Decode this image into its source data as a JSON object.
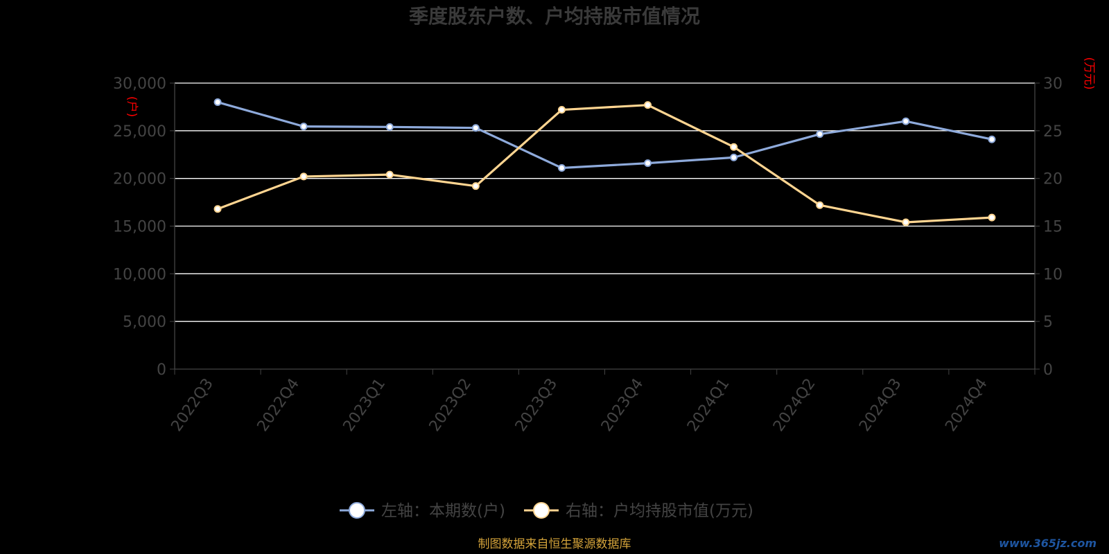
{
  "title": "季度股东户数、户均持股市值情况",
  "footer_note": "制图数据来自恒生聚源数据库",
  "watermark": "www.365jz.com",
  "colors": {
    "left_series": "#8eaadb",
    "right_series": "#ffd591",
    "axis_text": "#444444",
    "unit_text": "#ff0000",
    "grid": "#ffffff",
    "footer": "#d4a33a",
    "title": "#3a3a3a"
  },
  "chart_data": {
    "type": "line",
    "categories": [
      "2022Q3",
      "2022Q4",
      "2023Q1",
      "2023Q2",
      "2023Q3",
      "2023Q4",
      "2024Q1",
      "2024Q2",
      "2024Q3",
      "2024Q4"
    ],
    "series": [
      {
        "name": "左轴：本期数(户)",
        "axis": "left",
        "values": [
          28000,
          25450,
          25400,
          25300,
          21100,
          21600,
          22200,
          24650,
          26000,
          24100
        ]
      },
      {
        "name": "右轴：户均持股市值(万元)",
        "axis": "right",
        "values": [
          16.8,
          20.2,
          20.4,
          19.2,
          27.2,
          27.7,
          23.3,
          17.2,
          15.4,
          15.9
        ]
      }
    ],
    "y_left": {
      "unit_label": "(户)",
      "ylim": [
        0,
        30000
      ],
      "ticks": [
        "0",
        "5,000",
        "10,000",
        "15,000",
        "20,000",
        "25,000",
        "30,000"
      ]
    },
    "y_right": {
      "unit_label": "(万元)",
      "ylim": [
        0,
        30
      ],
      "ticks": [
        "0",
        "5",
        "10",
        "15",
        "20",
        "25",
        "30"
      ]
    },
    "grid": true,
    "legend_position": "bottom-center"
  }
}
